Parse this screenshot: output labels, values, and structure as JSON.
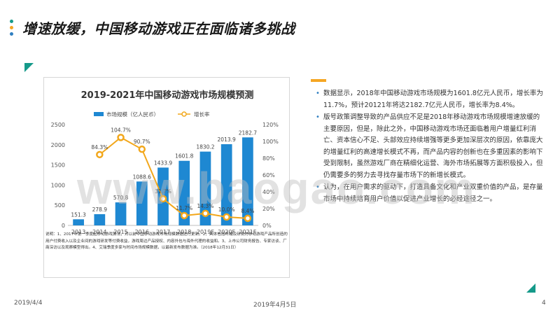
{
  "page_title": "增速放缓，中国移动游戏正在面临诸多挑战",
  "colors": {
    "accent_teal": "#159a8a",
    "bar_blue": "#1e88d2",
    "line_orange": "#f2a71b",
    "bullet_orange": "#f5a623",
    "bullet_blue": "#2f7fc1"
  },
  "chart_data": {
    "type": "bar",
    "title": "2019-2021年中国移动游戏市场规模预测",
    "categories": [
      "2013",
      "2014",
      "2015",
      "2016",
      "2017",
      "2018",
      "2019F",
      "2020F",
      "2021F"
    ],
    "series": [
      {
        "name": "市场规模（亿人民币）",
        "type": "bar",
        "axis": "left",
        "values": [
          151.3,
          278.9,
          570.8,
          1088.6,
          1433.9,
          1601.8,
          1830.2,
          2013.9,
          2182.7
        ],
        "labels": [
          "151.3",
          "278.9",
          "570.8",
          "1088.6",
          "1433.9",
          "1601.8",
          "1830.2",
          "2013.9",
          "2182.7"
        ]
      },
      {
        "name": "增长率",
        "type": "line",
        "axis": "right",
        "values": [
          null,
          84.3,
          104.7,
          90.7,
          31.7,
          11.7,
          14.3,
          10.0,
          8.4
        ],
        "labels": [
          "",
          "84.3%",
          "104.7%",
          "90.7%",
          "31.7%",
          "11.7%",
          "14.3%",
          "10.0%",
          "8.4%"
        ]
      }
    ],
    "ylim_left": [
      0,
      2500
    ],
    "yticks_left": [
      "0",
      "500",
      "1000",
      "1500",
      "2000",
      "2500"
    ],
    "ylim_right": [
      0,
      120
    ],
    "yticks_right": [
      "0%",
      "20%",
      "40%",
      "60%",
      "80%",
      "100%",
      "120%"
    ],
    "legend_position": "top",
    "grid": false
  },
  "chart_note": "说明：1、2017年第一季度起移动游戏算法，对以前中国移动游戏市场规模数据进行更新。2、具体包括终端及研发的移动游戏产品所创造的用户付费收入以及企业间的游戏研发等付费收益，游戏周边产品授权、内容外包与海外代理的收益和。3、上市公司财务报告、专家访谈、厂商深访以及观察模型得出。4、艾瑞季度多家与时间市场规模数据，以最新发布数据为准。（2018年12月31日）",
  "right_paragraphs": [
    "数据显示，2018年中国移动游戏市场规模为1601.8亿元人民币，增长率为11.7%，预计20121年将达2182.7亿元人民币，增长率为8.4%。",
    "版号政策调整导致的产品供应不足是2018年移动游戏市场规模增速放缓的主要原因，但是，除此之外，中国移动游戏市场还面临着用户增量红利消亡、资本信心不足、头部效应持续增强等更多更加深层次的原因，依靠庞大的增量红利的高速增长模式不再，而产品内容的创新也在多重因素的影响下受到限制，虽然游戏厂商在精细化运营、海外市场拓展等方面积极投入，但仍需要多的努力去寻找存量市场下的新增长模式。",
    "认为，在用户需求的驱动下，打造具备文化和产业双重价值的产品，是存量市场中持续培育用户价值以促进产业增长的必经途径之一。"
  ],
  "footer": {
    "date_left": "2019/4/4",
    "date_center": "2019年4月5日",
    "page_number": "4"
  },
  "watermark": "www.baogao.com"
}
